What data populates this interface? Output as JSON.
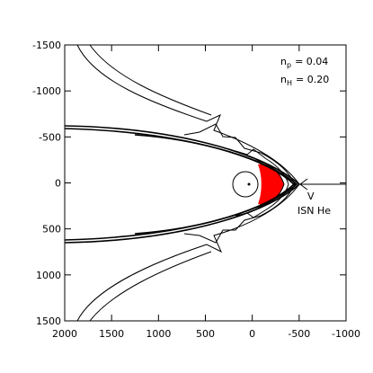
{
  "chart_data": {
    "type": "contour",
    "xlim": [
      2000,
      -1000
    ],
    "xticks": [
      2000,
      1500,
      1000,
      500,
      0,
      -500,
      -1000
    ],
    "ylim": [
      -1500,
      1500
    ],
    "yticks": [
      -1500,
      -1000,
      -500,
      0,
      500,
      1000,
      1500
    ],
    "fill_color": "#ff0000",
    "line_color": "#000000",
    "annotations": {
      "np": {
        "symbol": "n",
        "subscript": "p",
        "text": "= 0.04"
      },
      "nh": {
        "symbol": "n",
        "subscript": "H",
        "text": "= 0.20"
      },
      "velocity": "V",
      "species": "ISN He"
    }
  }
}
